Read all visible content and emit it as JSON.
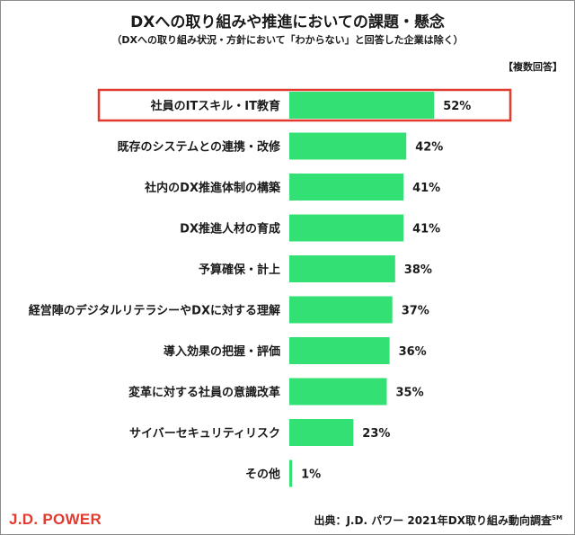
{
  "title": "DXへの取り組みや推進においての課題・懸念",
  "subtitle": "（DXへの取り組み状況・方針において「わからない」と回答した企業は除く）",
  "note": "【複数回答】",
  "brand": "J.D. POWER",
  "source": {
    "text": "出典：J.D. パワー 2021年DX取り組み動向調査",
    "mark": "SM"
  },
  "colors": {
    "bar": "#33e073",
    "highlight": "#e23a2f"
  },
  "chart_data": {
    "type": "bar",
    "orientation": "horizontal",
    "categories": [
      "社員のITスキル・IT教育",
      "既存のシステムとの連携・改修",
      "社内のDX推進体制の構築",
      "DX推進人材の育成",
      "予算確保・計上",
      "経営陣のデジタルリテラシーやDXに対する理解",
      "導入効果の把握・評価",
      "変革に対する社員の意識改革",
      "サイバーセキュリティリスク",
      "その他"
    ],
    "values": [
      52,
      42,
      41,
      41,
      38,
      37,
      36,
      35,
      23,
      1
    ],
    "value_labels": [
      "52%",
      "42%",
      "41%",
      "41%",
      "38%",
      "37%",
      "36%",
      "35%",
      "23%",
      "1%"
    ],
    "highlighted_index": 0,
    "xlim": [
      0,
      100
    ],
    "grid": false
  }
}
